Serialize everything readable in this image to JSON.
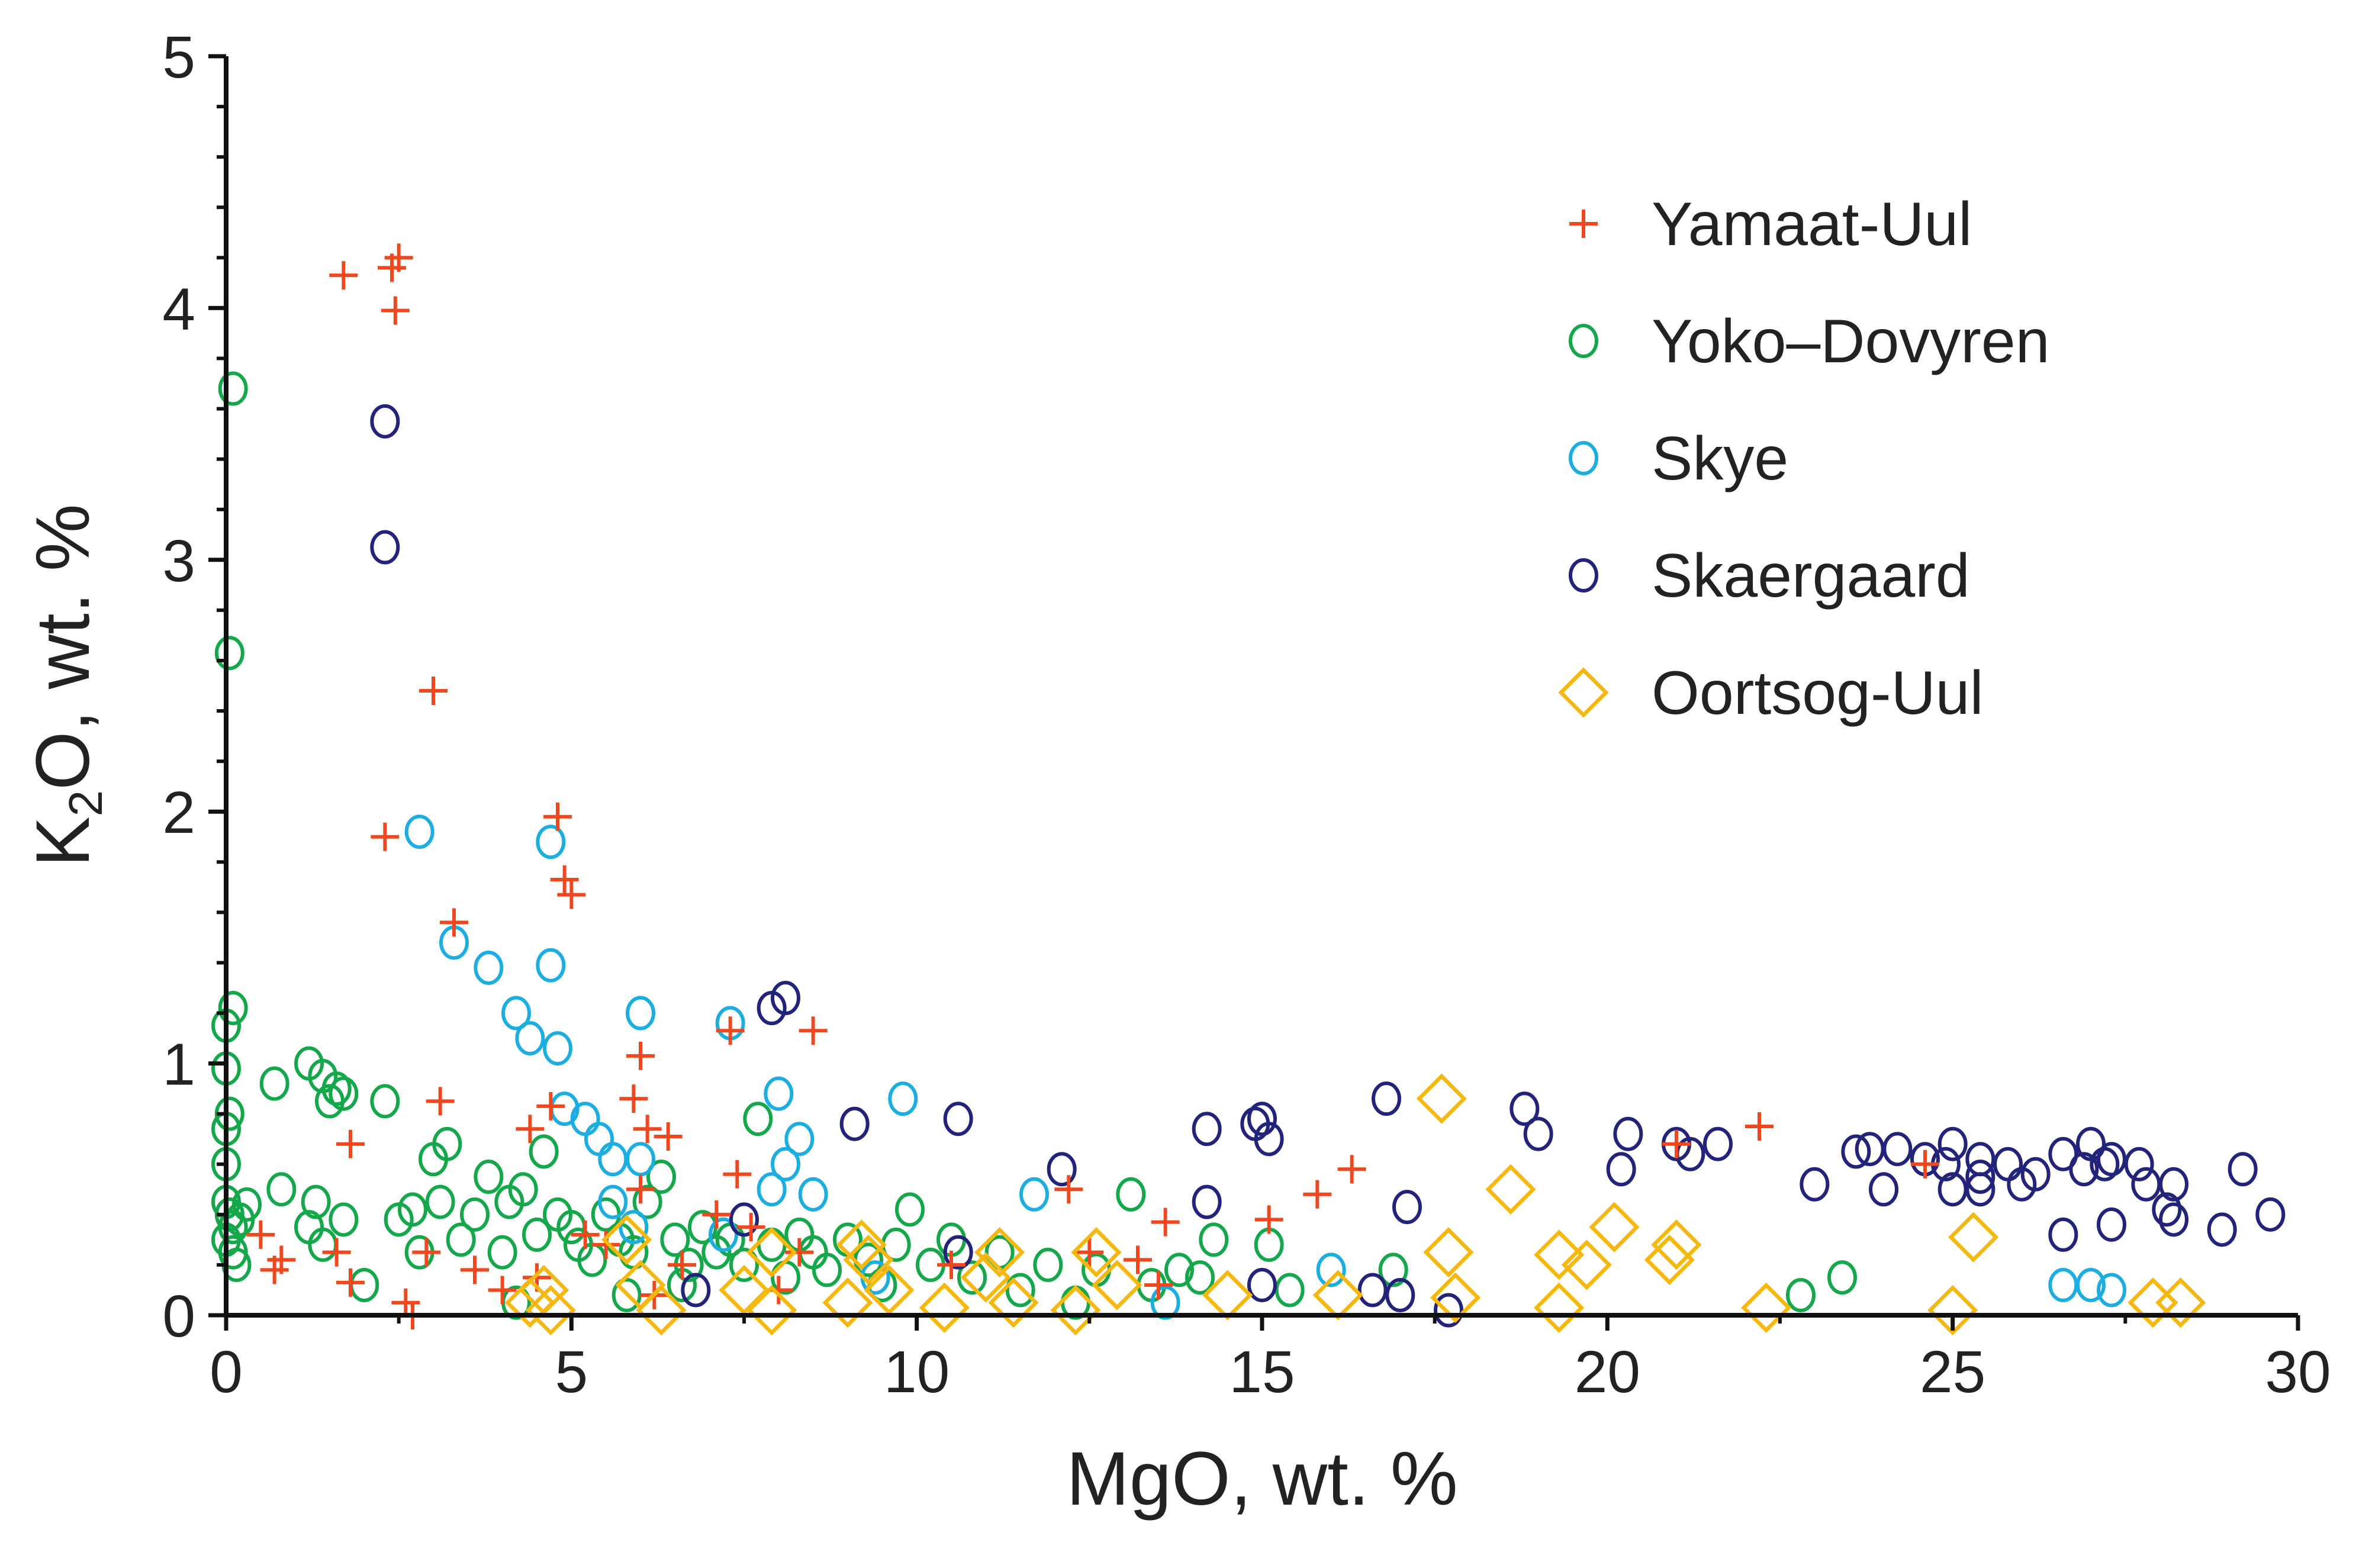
{
  "chart_data": {
    "type": "scatter",
    "title": "",
    "xlabel": "MgO, wt. %",
    "ylabel_parts": {
      "base": "K",
      "sub": "2",
      "rest": "O, wt. %"
    },
    "xlim": [
      0,
      30
    ],
    "ylim": [
      0,
      5
    ],
    "xticks": [
      0,
      5,
      10,
      15,
      20,
      25,
      30
    ],
    "yticks": [
      0,
      1,
      2,
      3,
      4,
      5
    ],
    "xtick_labels": [
      "0",
      "5",
      "10",
      "15",
      "20",
      "25",
      "30"
    ],
    "ytick_labels": [
      "0",
      "1",
      "2",
      "3",
      "4",
      "5"
    ],
    "grid": false,
    "legend_position": "top-right",
    "series": [
      {
        "name": "Yamaat-Uul",
        "marker": "plus",
        "color": "#F0481E",
        "points": [
          [
            1.7,
            4.13
          ],
          [
            2.4,
            4.16
          ],
          [
            2.5,
            4.2
          ],
          [
            2.45,
            3.99
          ],
          [
            3.0,
            2.48
          ],
          [
            2.3,
            1.9
          ],
          [
            3.3,
            1.56
          ],
          [
            4.8,
            1.98
          ],
          [
            4.9,
            1.73
          ],
          [
            5.0,
            1.67
          ],
          [
            4.7,
            0.83
          ],
          [
            4.4,
            0.74
          ],
          [
            6.0,
            1.03
          ],
          [
            7.3,
            1.13
          ],
          [
            8.5,
            1.13
          ],
          [
            3.1,
            0.85
          ],
          [
            5.9,
            0.86
          ],
          [
            6.1,
            0.74
          ],
          [
            6.4,
            0.71
          ],
          [
            1.8,
            0.68
          ],
          [
            7.4,
            0.56
          ],
          [
            6.0,
            0.5
          ],
          [
            12.2,
            0.5
          ],
          [
            13.6,
            0.37
          ],
          [
            15.1,
            0.38
          ],
          [
            15.8,
            0.48
          ],
          [
            16.3,
            0.58
          ],
          [
            21.0,
            0.68
          ],
          [
            22.2,
            0.75
          ],
          [
            24.6,
            0.6
          ],
          [
            0.5,
            0.32
          ],
          [
            0.7,
            0.18
          ],
          [
            0.8,
            0.22
          ],
          [
            1.6,
            0.25
          ],
          [
            1.8,
            0.13
          ],
          [
            2.6,
            0.05
          ],
          [
            2.7,
            0.0
          ],
          [
            2.9,
            0.25
          ],
          [
            3.6,
            0.18
          ],
          [
            4.0,
            0.1
          ],
          [
            4.5,
            0.15
          ],
          [
            5.2,
            0.32
          ],
          [
            5.5,
            0.28
          ],
          [
            6.2,
            0.08
          ],
          [
            6.6,
            0.2
          ],
          [
            7.1,
            0.4
          ],
          [
            7.6,
            0.35
          ],
          [
            8.0,
            0.1
          ],
          [
            8.3,
            0.25
          ],
          [
            10.5,
            0.2
          ],
          [
            12.5,
            0.25
          ],
          [
            13.2,
            0.22
          ],
          [
            13.5,
            0.12
          ]
        ]
      },
      {
        "name": "Yoko–Dovyren",
        "marker": "circle",
        "color": "#14A84A",
        "points": [
          [
            0.1,
            3.68
          ],
          [
            0.05,
            2.63
          ],
          [
            0.1,
            1.22
          ],
          [
            0.0,
            1.15
          ],
          [
            0.0,
            0.98
          ],
          [
            0.05,
            0.8
          ],
          [
            0.0,
            0.74
          ],
          [
            0.0,
            0.6
          ],
          [
            0.0,
            0.45
          ],
          [
            0.05,
            0.4
          ],
          [
            0.1,
            0.35
          ],
          [
            0.0,
            0.3
          ],
          [
            0.1,
            0.25
          ],
          [
            0.15,
            0.2
          ],
          [
            0.2,
            0.38
          ],
          [
            0.3,
            0.44
          ],
          [
            0.7,
            0.92
          ],
          [
            0.8,
            0.5
          ],
          [
            1.2,
            1.0
          ],
          [
            1.4,
            0.95
          ],
          [
            1.5,
            0.85
          ],
          [
            1.6,
            0.9
          ],
          [
            1.7,
            0.88
          ],
          [
            1.3,
            0.45
          ],
          [
            1.2,
            0.35
          ],
          [
            1.4,
            0.28
          ],
          [
            1.7,
            0.38
          ],
          [
            2.0,
            0.12
          ],
          [
            2.3,
            0.85
          ],
          [
            2.5,
            0.38
          ],
          [
            2.7,
            0.42
          ],
          [
            2.8,
            0.25
          ],
          [
            3.0,
            0.62
          ],
          [
            3.2,
            0.68
          ],
          [
            3.1,
            0.45
          ],
          [
            3.4,
            0.3
          ],
          [
            3.6,
            0.4
          ],
          [
            3.8,
            0.55
          ],
          [
            4.0,
            0.25
          ],
          [
            4.1,
            0.45
          ],
          [
            4.3,
            0.5
          ],
          [
            4.5,
            0.32
          ],
          [
            4.6,
            0.65
          ],
          [
            4.8,
            0.4
          ],
          [
            5.0,
            0.35
          ],
          [
            5.1,
            0.28
          ],
          [
            5.3,
            0.22
          ],
          [
            5.5,
            0.4
          ],
          [
            5.7,
            0.3
          ],
          [
            5.9,
            0.25
          ],
          [
            6.1,
            0.45
          ],
          [
            6.3,
            0.55
          ],
          [
            6.5,
            0.3
          ],
          [
            6.7,
            0.2
          ],
          [
            6.9,
            0.35
          ],
          [
            7.1,
            0.25
          ],
          [
            7.3,
            0.3
          ],
          [
            7.5,
            0.2
          ],
          [
            7.7,
            0.78
          ],
          [
            7.9,
            0.28
          ],
          [
            8.1,
            0.15
          ],
          [
            8.3,
            0.32
          ],
          [
            8.5,
            0.25
          ],
          [
            8.7,
            0.18
          ],
          [
            9.0,
            0.3
          ],
          [
            9.3,
            0.22
          ],
          [
            9.5,
            0.12
          ],
          [
            9.7,
            0.28
          ],
          [
            9.9,
            0.42
          ],
          [
            10.2,
            0.2
          ],
          [
            10.5,
            0.3
          ],
          [
            10.8,
            0.15
          ],
          [
            11.2,
            0.25
          ],
          [
            11.5,
            0.1
          ],
          [
            11.9,
            0.2
          ],
          [
            12.3,
            0.05
          ],
          [
            12.6,
            0.18
          ],
          [
            13.1,
            0.48
          ],
          [
            13.4,
            0.12
          ],
          [
            13.8,
            0.18
          ],
          [
            14.1,
            0.15
          ],
          [
            14.3,
            0.3
          ],
          [
            15.1,
            0.28
          ],
          [
            15.4,
            0.1
          ],
          [
            16.9,
            0.18
          ],
          [
            22.8,
            0.08
          ],
          [
            23.4,
            0.15
          ],
          [
            4.2,
            0.05
          ],
          [
            5.8,
            0.08
          ],
          [
            6.6,
            0.12
          ]
        ]
      },
      {
        "name": "Skye",
        "marker": "circle",
        "color": "#1CAEE0",
        "points": [
          [
            2.8,
            1.92
          ],
          [
            4.7,
            1.88
          ],
          [
            3.3,
            1.48
          ],
          [
            3.8,
            1.38
          ],
          [
            4.2,
            1.2
          ],
          [
            4.4,
            1.1
          ],
          [
            4.7,
            1.39
          ],
          [
            4.8,
            1.06
          ],
          [
            6.0,
            1.2
          ],
          [
            7.3,
            1.16
          ],
          [
            4.9,
            0.82
          ],
          [
            5.2,
            0.78
          ],
          [
            5.4,
            0.7
          ],
          [
            5.6,
            0.62
          ],
          [
            8.0,
            0.88
          ],
          [
            9.8,
            0.86
          ],
          [
            8.3,
            0.7
          ],
          [
            8.1,
            0.6
          ],
          [
            7.9,
            0.5
          ],
          [
            8.5,
            0.48
          ],
          [
            6.0,
            0.62
          ],
          [
            5.6,
            0.45
          ],
          [
            7.2,
            0.32
          ],
          [
            11.7,
            0.48
          ],
          [
            16.0,
            0.18
          ],
          [
            13.6,
            0.05
          ],
          [
            26.6,
            0.12
          ],
          [
            27.0,
            0.12
          ],
          [
            27.3,
            0.1
          ],
          [
            9.4,
            0.15
          ],
          [
            5.9,
            0.35
          ]
        ]
      },
      {
        "name": "Skaergaard",
        "marker": "circle",
        "color": "#22237A",
        "points": [
          [
            2.3,
            3.55
          ],
          [
            2.3,
            3.05
          ],
          [
            8.1,
            1.26
          ],
          [
            7.9,
            1.22
          ],
          [
            9.1,
            0.76
          ],
          [
            10.6,
            0.78
          ],
          [
            14.2,
            0.74
          ],
          [
            14.9,
            0.76
          ],
          [
            15.0,
            0.78
          ],
          [
            15.1,
            0.7
          ],
          [
            16.8,
            0.86
          ],
          [
            18.8,
            0.82
          ],
          [
            19.0,
            0.72
          ],
          [
            20.2,
            0.58
          ],
          [
            20.3,
            0.72
          ],
          [
            21.0,
            0.68
          ],
          [
            21.2,
            0.64
          ],
          [
            21.6,
            0.68
          ],
          [
            12.1,
            0.58
          ],
          [
            14.2,
            0.45
          ],
          [
            17.1,
            0.43
          ],
          [
            23.0,
            0.52
          ],
          [
            23.6,
            0.65
          ],
          [
            23.8,
            0.66
          ],
          [
            24.0,
            0.5
          ],
          [
            24.2,
            0.66
          ],
          [
            24.6,
            0.62
          ],
          [
            24.9,
            0.6
          ],
          [
            25.0,
            0.68
          ],
          [
            25.0,
            0.5
          ],
          [
            25.4,
            0.62
          ],
          [
            25.4,
            0.55
          ],
          [
            25.4,
            0.5
          ],
          [
            25.8,
            0.6
          ],
          [
            26.0,
            0.52
          ],
          [
            26.2,
            0.56
          ],
          [
            26.6,
            0.64
          ],
          [
            26.6,
            0.32
          ],
          [
            26.9,
            0.58
          ],
          [
            27.0,
            0.68
          ],
          [
            27.2,
            0.6
          ],
          [
            27.3,
            0.62
          ],
          [
            27.3,
            0.36
          ],
          [
            27.7,
            0.6
          ],
          [
            27.8,
            0.52
          ],
          [
            28.1,
            0.42
          ],
          [
            28.2,
            0.52
          ],
          [
            28.2,
            0.38
          ],
          [
            28.9,
            0.34
          ],
          [
            29.2,
            0.58
          ],
          [
            29.6,
            0.4
          ],
          [
            7.5,
            0.38
          ],
          [
            6.8,
            0.1
          ],
          [
            10.6,
            0.25
          ],
          [
            16.6,
            0.1
          ],
          [
            17.0,
            0.08
          ],
          [
            17.7,
            0.02
          ],
          [
            15.0,
            0.12
          ]
        ]
      },
      {
        "name": "Oortsog-Uul",
        "marker": "diamond",
        "color": "#F6B80F",
        "points": [
          [
            17.6,
            0.86
          ],
          [
            18.6,
            0.5
          ],
          [
            17.7,
            0.25
          ],
          [
            19.3,
            0.24
          ],
          [
            20.1,
            0.35
          ],
          [
            19.7,
            0.2
          ],
          [
            20.9,
            0.22
          ],
          [
            21.0,
            0.28
          ],
          [
            25.3,
            0.31
          ],
          [
            5.8,
            0.3
          ],
          [
            7.9,
            0.25
          ],
          [
            9.2,
            0.28
          ],
          [
            9.3,
            0.22
          ],
          [
            11.2,
            0.25
          ],
          [
            12.6,
            0.25
          ],
          [
            4.4,
            0.05
          ],
          [
            4.6,
            0.1
          ],
          [
            4.7,
            0.02
          ],
          [
            6.3,
            0.02
          ],
          [
            7.9,
            0.02
          ],
          [
            9.0,
            0.05
          ],
          [
            10.4,
            0.03
          ],
          [
            11.4,
            0.05
          ],
          [
            12.3,
            0.02
          ],
          [
            14.5,
            0.08
          ],
          [
            16.1,
            0.08
          ],
          [
            17.8,
            0.07
          ],
          [
            19.3,
            0.03
          ],
          [
            22.3,
            0.03
          ],
          [
            25.0,
            0.02
          ],
          [
            27.9,
            0.05
          ],
          [
            28.3,
            0.05
          ],
          [
            9.6,
            0.1
          ],
          [
            11.0,
            0.15
          ],
          [
            12.9,
            0.12
          ],
          [
            7.5,
            0.1
          ],
          [
            6.0,
            0.12
          ]
        ]
      }
    ]
  }
}
